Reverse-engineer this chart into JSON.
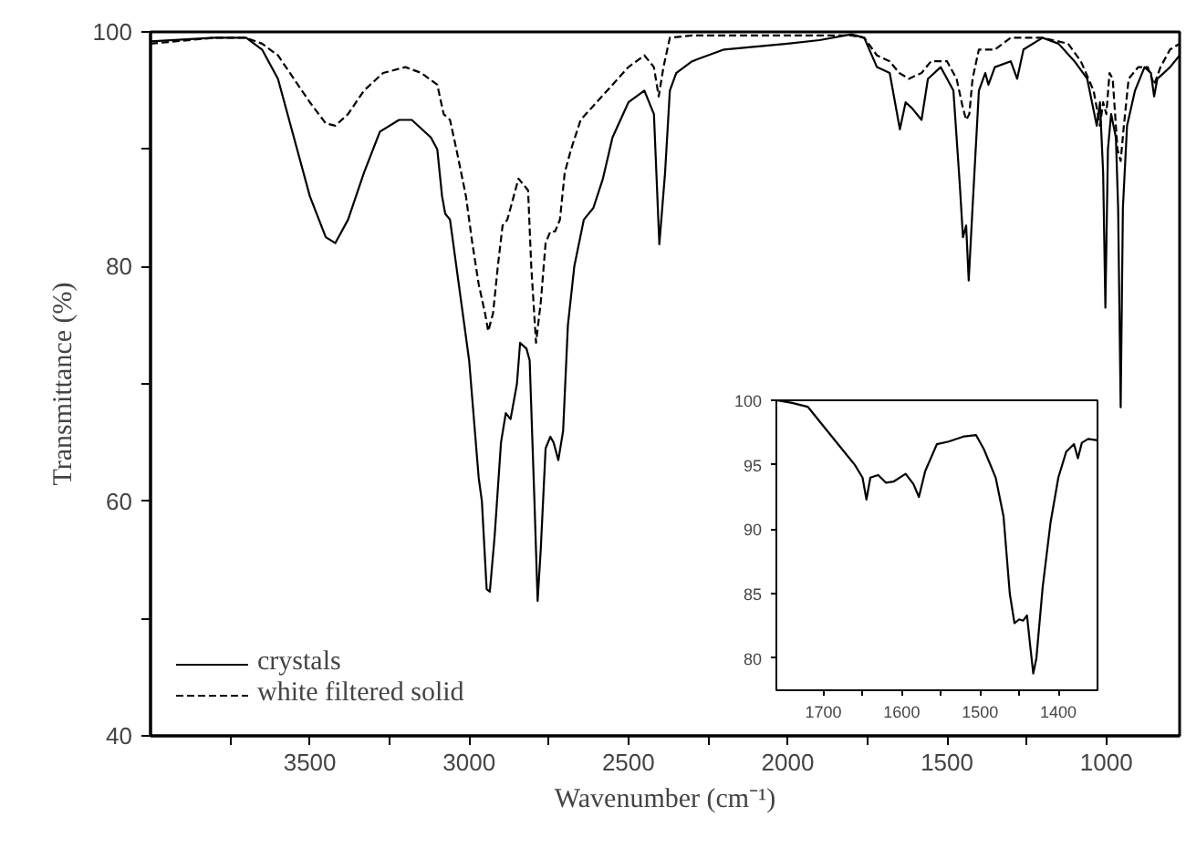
{
  "chart_data": [
    {
      "type": "line",
      "xlabel": "Wavenumber (cm⁻¹)",
      "ylabel": "Transmittance (%)",
      "xlim": [
        4000,
        770
      ],
      "ylim": [
        40,
        100
      ],
      "xticks": [
        3500,
        3000,
        2500,
        2000,
        1500,
        1000,
        {
          "value": 3750,
          "label": null
        },
        {
          "value": 3250,
          "label": null
        },
        {
          "value": 2750,
          "label": null
        },
        {
          "value": 2250,
          "label": null
        },
        {
          "value": 1750,
          "label": null
        },
        {
          "value": 1250,
          "label": null
        }
      ],
      "yticks": [
        40,
        60,
        80,
        100,
        {
          "value": 50,
          "label": null
        },
        {
          "value": 70,
          "label": null
        },
        {
          "value": 90,
          "label": null
        }
      ],
      "grid": false,
      "legend": "bottom left",
      "series": [
        {
          "name": "crystals",
          "color": "#000000",
          "line_style": "solid",
          "x": [
            4000,
            3800,
            3700,
            3650,
            3600,
            3550,
            3500,
            3450,
            3420,
            3380,
            3330,
            3280,
            3220,
            3180,
            3120,
            3100,
            3085,
            3075,
            3060,
            3040,
            3000,
            2970,
            2960,
            2945,
            2935,
            2920,
            2900,
            2885,
            2870,
            2850,
            2840,
            2820,
            2810,
            2795,
            2785,
            2775,
            2760,
            2745,
            2735,
            2720,
            2705,
            2690,
            2670,
            2640,
            2610,
            2580,
            2550,
            2500,
            2450,
            2420,
            2403,
            2385,
            2370,
            2350,
            2300,
            2200,
            2000,
            1900,
            1800,
            1760,
            1720,
            1680,
            1648,
            1630,
            1610,
            1580,
            1560,
            1520,
            1480,
            1460,
            1450,
            1440,
            1432,
            1420,
            1400,
            1380,
            1370,
            1350,
            1300,
            1280,
            1260,
            1200,
            1150,
            1100,
            1060,
            1030,
            1020,
            1010,
            1003,
            995,
            985,
            970,
            963,
            955,
            948,
            935,
            910,
            880,
            860,
            850,
            840,
            800,
            770
          ],
          "values": [
            99.2,
            99.5,
            99.5,
            98.5,
            96,
            91,
            86,
            82.5,
            82,
            84,
            88,
            91.5,
            92.5,
            92.5,
            91,
            90,
            86,
            84.5,
            84,
            80,
            72,
            62,
            60,
            52.5,
            52.3,
            57,
            65,
            67.5,
            67,
            70,
            73.5,
            73,
            72,
            60,
            51.5,
            56,
            64.5,
            65.5,
            65,
            63.5,
            66,
            75,
            80,
            84,
            85,
            87.5,
            91,
            94,
            95,
            93,
            81.9,
            88,
            95,
            96.5,
            97.5,
            98.5,
            99,
            99.3,
            99.8,
            99.5,
            97,
            96.5,
            91.7,
            94,
            93.5,
            92.5,
            96,
            97,
            95,
            87,
            82.5,
            83.5,
            78.8,
            85,
            95,
            96.5,
            95.5,
            97,
            97.5,
            96,
            98.5,
            99.5,
            99,
            97.5,
            96,
            92,
            94,
            88,
            76.5,
            90,
            93,
            91,
            85,
            68,
            85,
            92,
            95,
            97,
            96.5,
            94.5,
            96,
            97,
            98
          ]
        },
        {
          "name": "white filtered solid",
          "color": "#000000",
          "line_style": "dashed",
          "x": [
            4000,
            3800,
            3700,
            3650,
            3600,
            3550,
            3500,
            3450,
            3420,
            3380,
            3330,
            3270,
            3200,
            3150,
            3100,
            3080,
            3060,
            3040,
            3010,
            2990,
            2970,
            2950,
            2940,
            2925,
            2910,
            2895,
            2880,
            2860,
            2845,
            2830,
            2815,
            2805,
            2790,
            2775,
            2760,
            2745,
            2730,
            2715,
            2700,
            2680,
            2650,
            2600,
            2550,
            2500,
            2450,
            2420,
            2405,
            2390,
            2370,
            2300,
            2000,
            1800,
            1760,
            1720,
            1680,
            1650,
            1620,
            1580,
            1550,
            1500,
            1470,
            1450,
            1440,
            1430,
            1420,
            1400,
            1350,
            1300,
            1200,
            1120,
            1080,
            1040,
            1020,
            1010,
            1000,
            990,
            980,
            965,
            955,
            945,
            930,
            900,
            870,
            850,
            830,
            800,
            770
          ],
          "values": [
            99,
            99.5,
            99.5,
            99,
            98,
            96,
            94,
            92.2,
            92,
            93,
            95,
            96.5,
            97,
            96.5,
            95.5,
            93,
            92.5,
            90,
            86,
            82,
            78.5,
            76,
            74.5,
            76,
            80,
            83.5,
            84,
            86,
            87.5,
            87,
            86.5,
            80,
            73.5,
            77,
            82,
            83,
            83,
            84,
            88,
            90,
            92.5,
            94,
            95.5,
            97,
            98,
            97,
            94.5,
            97,
            99.5,
            99.7,
            99.7,
            99.7,
            99.5,
            98,
            97.5,
            96.5,
            96,
            96.5,
            97.5,
            97.5,
            96,
            93.5,
            92.5,
            93,
            96,
            98.5,
            98.5,
            99.5,
            99.5,
            99,
            97.5,
            95,
            92,
            94,
            93,
            96.5,
            96,
            90,
            89,
            92,
            96,
            97,
            97,
            95.5,
            97,
            98.5,
            99
          ]
        }
      ]
    },
    {
      "type": "line",
      "xlim": [
        1760,
        1350
      ],
      "ylim": [
        77.5,
        100
      ],
      "xticks": [
        1700,
        1600,
        1500,
        1400,
        {
          "value": 1650,
          "label": null
        },
        {
          "value": 1550,
          "label": null
        },
        {
          "value": 1450,
          "label": null
        }
      ],
      "yticks": [
        80,
        85,
        90,
        95,
        100
      ],
      "grid": false,
      "series": [
        {
          "color": "#000000",
          "line_style": "solid",
          "x": [
            1760,
            1740,
            1720,
            1700,
            1680,
            1660,
            1650,
            1645,
            1640,
            1630,
            1620,
            1610,
            1595,
            1585,
            1578,
            1570,
            1555,
            1540,
            1520,
            1505,
            1495,
            1480,
            1470,
            1462,
            1456,
            1450,
            1445,
            1440,
            1436,
            1432,
            1428,
            1420,
            1410,
            1400,
            1390,
            1380,
            1375,
            1370,
            1362,
            1350
          ],
          "values": [
            100,
            99.8,
            99.5,
            98,
            96.5,
            95,
            94,
            92.3,
            94,
            94.2,
            93.6,
            93.7,
            94.3,
            93.5,
            92.5,
            94.5,
            96.6,
            96.8,
            97.2,
            97.3,
            96.2,
            94,
            91,
            85,
            82.7,
            83,
            82.9,
            83.3,
            81,
            78.8,
            80,
            85.5,
            90.5,
            94,
            96,
            96.6,
            95.5,
            96.7,
            97,
            96.9
          ]
        }
      ]
    }
  ]
}
